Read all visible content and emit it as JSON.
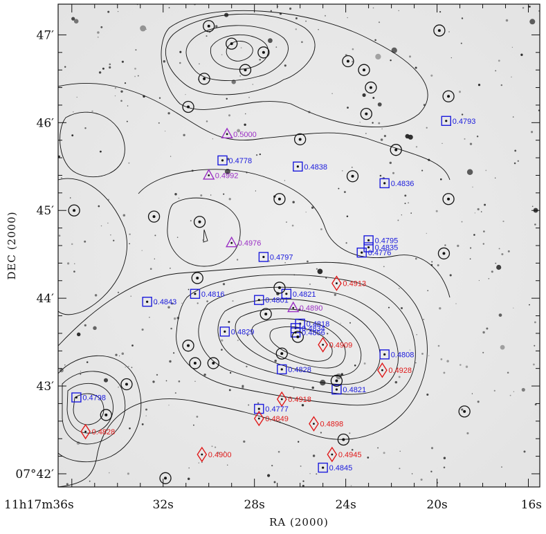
{
  "chart_data": {
    "type": "scatter",
    "title": "",
    "xlabel": "RA (2000)",
    "ylabel": "DEC (2000)",
    "x_axis_reversed": true,
    "xlim": [
      36.6,
      15.5
    ],
    "ylim": [
      41.85,
      47.35
    ],
    "x_ticks": [
      {
        "value": 36,
        "label": "11h17m36s"
      },
      {
        "value": 32,
        "label": "32s"
      },
      {
        "value": 28,
        "label": "28s"
      },
      {
        "value": 24,
        "label": "24s"
      },
      {
        "value": 20,
        "label": "20s"
      },
      {
        "value": 16,
        "label": "16s"
      }
    ],
    "y_ticks": [
      {
        "value": 42,
        "label": "07°42′"
      },
      {
        "value": 43,
        "label": "43′"
      },
      {
        "value": 44,
        "label": "44′"
      },
      {
        "value": 45,
        "label": "45′"
      },
      {
        "value": 46,
        "label": "46′"
      },
      {
        "value": 47,
        "label": "47′"
      }
    ],
    "colors": {
      "square": "#1a1adc",
      "triangle": "#9a2fc4",
      "diamond": "#e01a1a",
      "circle": "#111111",
      "contour": "#111111",
      "background": "#ececec"
    },
    "series": [
      {
        "marker": "square",
        "points": [
          {
            "ra": 19.6,
            "dec": 46.02,
            "z": "0.4793"
          },
          {
            "ra": 29.4,
            "dec": 45.57,
            "z": "0.4778"
          },
          {
            "ra": 26.1,
            "dec": 45.5,
            "z": "0.4838"
          },
          {
            "ra": 22.3,
            "dec": 45.31,
            "z": "0.4836"
          },
          {
            "ra": 23.0,
            "dec": 44.66,
            "z": "0.4795"
          },
          {
            "ra": 23.0,
            "dec": 44.58,
            "z": "0.4835"
          },
          {
            "ra": 23.3,
            "dec": 44.52,
            "z": "0.4776"
          },
          {
            "ra": 27.6,
            "dec": 44.47,
            "z": "0.4797"
          },
          {
            "ra": 30.6,
            "dec": 44.05,
            "z": "0.4816"
          },
          {
            "ra": 32.7,
            "dec": 43.96,
            "z": "0.4843"
          },
          {
            "ra": 27.8,
            "dec": 43.98,
            "z": "0.4801"
          },
          {
            "ra": 26.6,
            "dec": 44.05,
            "z": "0.4821"
          },
          {
            "ra": 26.0,
            "dec": 43.71,
            "z": "0.4818"
          },
          {
            "ra": 26.2,
            "dec": 43.66,
            "z": "0.4834"
          },
          {
            "ra": 26.2,
            "dec": 43.61,
            "z": "0.4856"
          },
          {
            "ra": 29.3,
            "dec": 43.62,
            "z": "0.4829"
          },
          {
            "ra": 22.3,
            "dec": 43.36,
            "z": "0.4808"
          },
          {
            "ra": 26.8,
            "dec": 43.19,
            "z": "0.4828"
          },
          {
            "ra": 24.4,
            "dec": 42.96,
            "z": "0.4821"
          },
          {
            "ra": 35.8,
            "dec": 42.87,
            "z": "0.4798"
          },
          {
            "ra": 27.8,
            "dec": 42.74,
            "z": "0.4777"
          },
          {
            "ra": 25.0,
            "dec": 42.07,
            "z": "0.4845"
          }
        ]
      },
      {
        "marker": "triangle",
        "points": [
          {
            "ra": 29.2,
            "dec": 45.87,
            "z": "0.5000"
          },
          {
            "ra": 30.0,
            "dec": 45.4,
            "z": "0.4992"
          },
          {
            "ra": 29.0,
            "dec": 44.63,
            "z": "0.4976"
          },
          {
            "ra": 26.3,
            "dec": 43.89,
            "z": "0.4890"
          }
        ]
      },
      {
        "marker": "diamond",
        "points": [
          {
            "ra": 24.4,
            "dec": 44.17,
            "z": "0.4913"
          },
          {
            "ra": 25.0,
            "dec": 43.47,
            "z": "0.4909"
          },
          {
            "ra": 22.4,
            "dec": 43.18,
            "z": "0.4928"
          },
          {
            "ra": 26.8,
            "dec": 42.85,
            "z": "0.4918"
          },
          {
            "ra": 27.8,
            "dec": 42.63,
            "z": "0.4849"
          },
          {
            "ra": 25.4,
            "dec": 42.57,
            "z": "0.4898"
          },
          {
            "ra": 35.4,
            "dec": 42.48,
            "z": "0.4828"
          },
          {
            "ra": 30.3,
            "dec": 42.22,
            "z": "0.4900"
          },
          {
            "ra": 24.6,
            "dec": 42.22,
            "z": "0.4945"
          }
        ]
      },
      {
        "marker": "circle",
        "points": [
          {
            "ra": 30.0,
            "dec": 47.1
          },
          {
            "ra": 29.0,
            "dec": 46.9
          },
          {
            "ra": 27.6,
            "dec": 46.8
          },
          {
            "ra": 28.4,
            "dec": 46.6
          },
          {
            "ra": 30.2,
            "dec": 46.5
          },
          {
            "ra": 23.9,
            "dec": 46.7
          },
          {
            "ra": 23.2,
            "dec": 46.6
          },
          {
            "ra": 22.9,
            "dec": 46.4
          },
          {
            "ra": 23.1,
            "dec": 46.1
          },
          {
            "ra": 19.9,
            "dec": 47.05
          },
          {
            "ra": 19.5,
            "dec": 46.3
          },
          {
            "ra": 30.9,
            "dec": 46.18
          },
          {
            "ra": 26.0,
            "dec": 45.81
          },
          {
            "ra": 21.8,
            "dec": 45.69
          },
          {
            "ra": 23.7,
            "dec": 45.39
          },
          {
            "ra": 19.5,
            "dec": 45.13
          },
          {
            "ra": 26.9,
            "dec": 45.13
          },
          {
            "ra": 35.9,
            "dec": 45.0
          },
          {
            "ra": 32.4,
            "dec": 44.93
          },
          {
            "ra": 30.4,
            "dec": 44.87
          },
          {
            "ra": 19.7,
            "dec": 44.51
          },
          {
            "ra": 30.5,
            "dec": 44.23
          },
          {
            "ra": 26.9,
            "dec": 44.12
          },
          {
            "ra": 27.5,
            "dec": 43.82
          },
          {
            "ra": 26.1,
            "dec": 43.56
          },
          {
            "ra": 30.9,
            "dec": 43.46
          },
          {
            "ra": 26.8,
            "dec": 43.37
          },
          {
            "ra": 30.6,
            "dec": 43.26
          },
          {
            "ra": 29.8,
            "dec": 43.26
          },
          {
            "ra": 24.4,
            "dec": 43.06
          },
          {
            "ra": 33.6,
            "dec": 43.02
          },
          {
            "ra": 34.5,
            "dec": 42.67
          },
          {
            "ra": 18.8,
            "dec": 42.71
          },
          {
            "ra": 24.1,
            "dec": 42.39
          },
          {
            "ra": 31.9,
            "dec": 41.95
          }
        ]
      }
    ]
  }
}
